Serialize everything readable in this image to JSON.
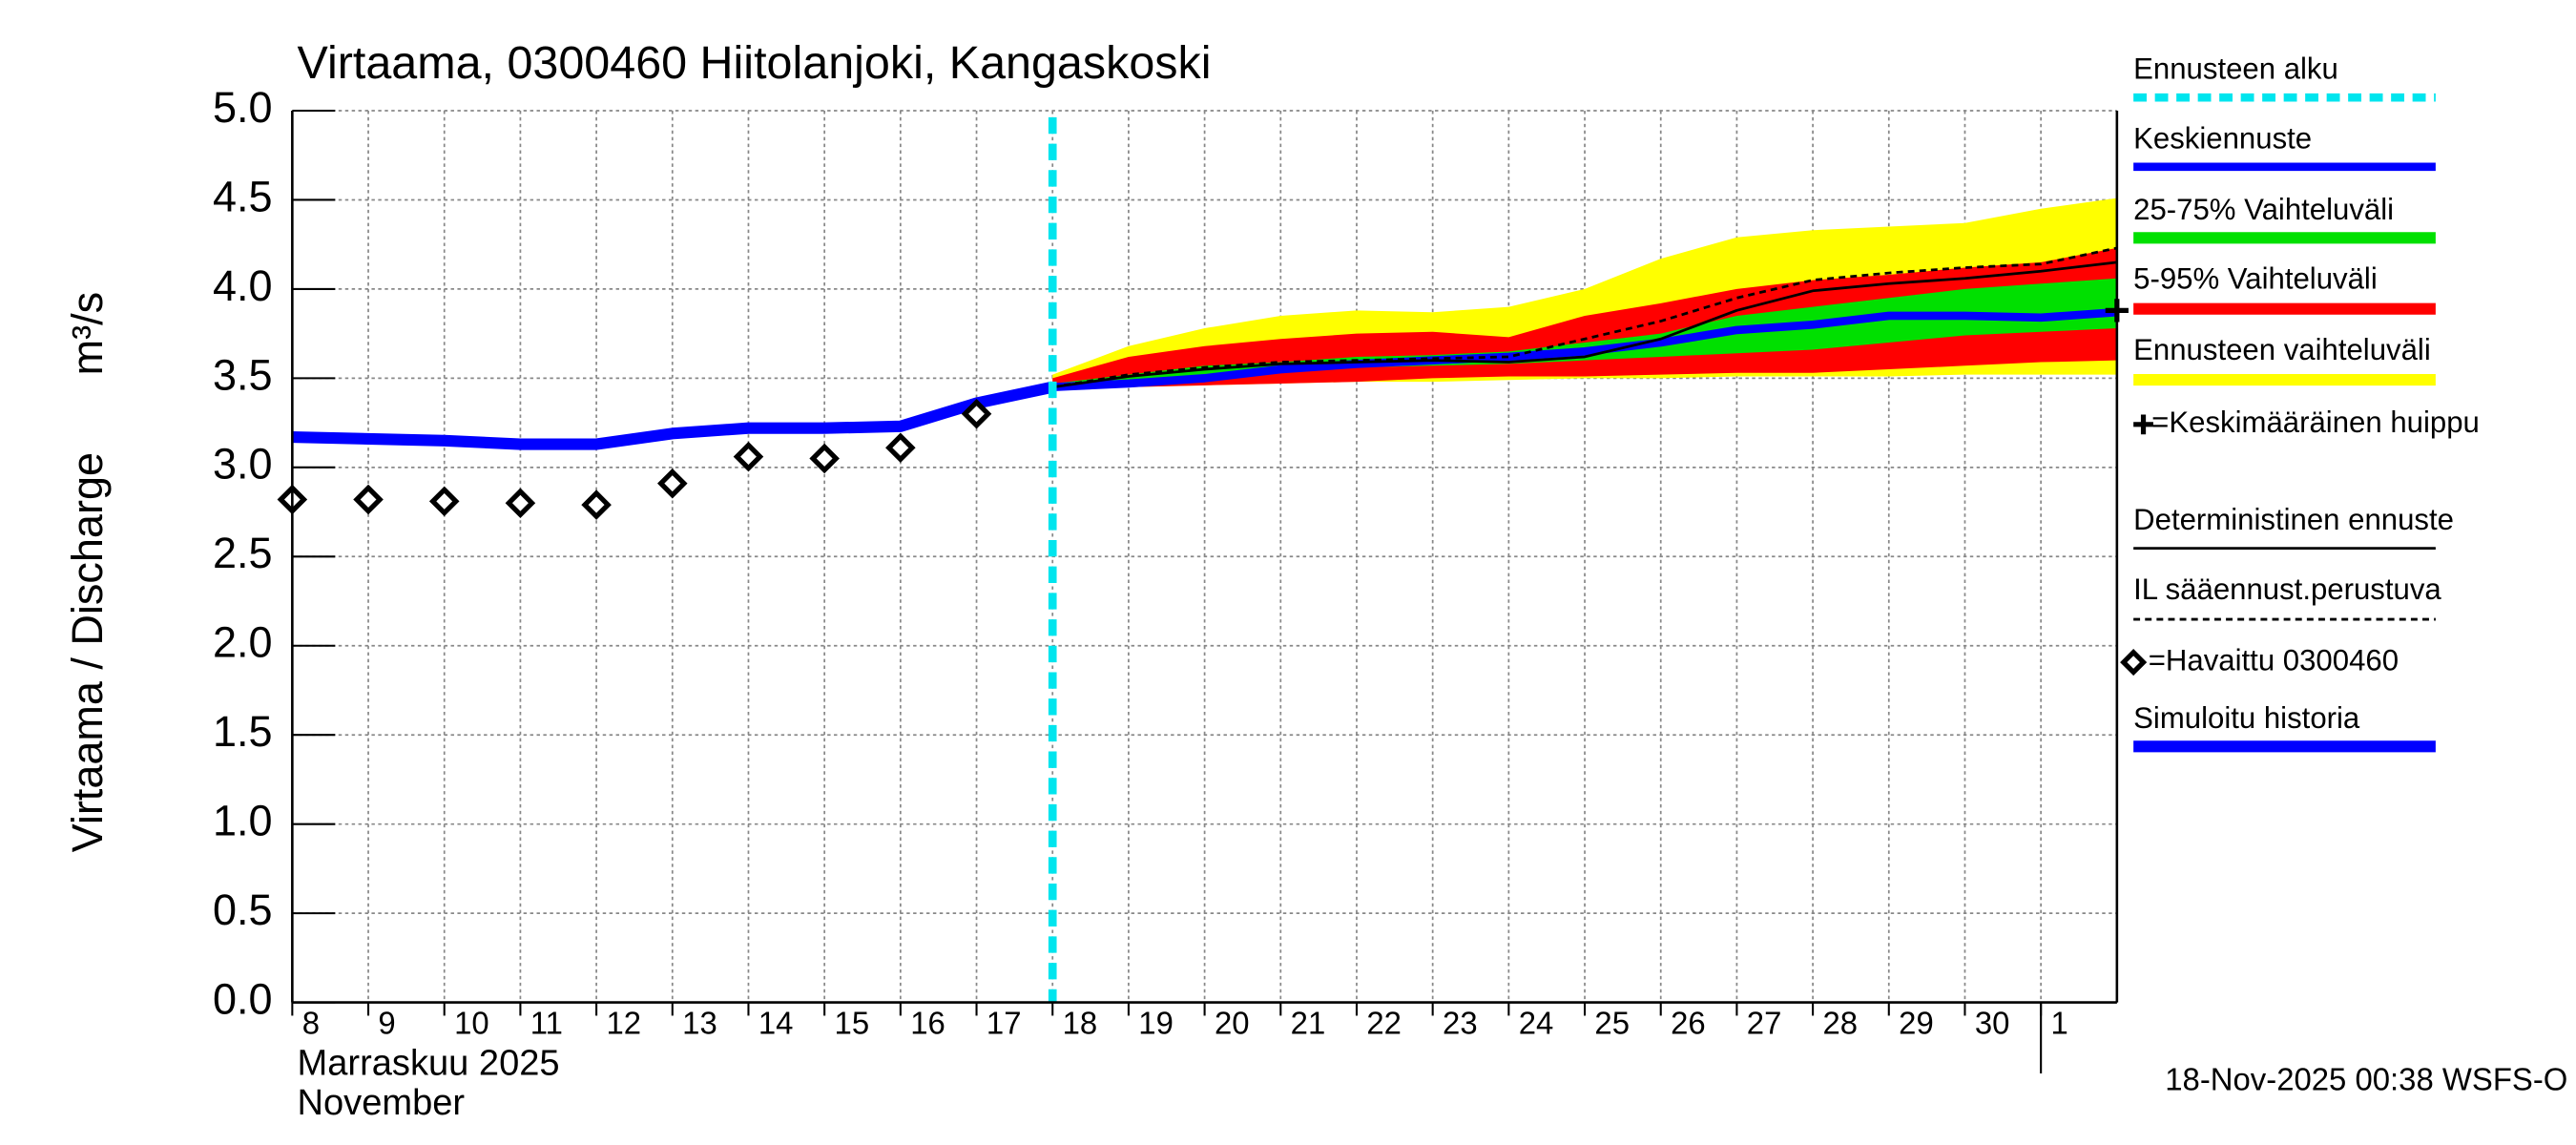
{
  "chart_data": {
    "type": "line",
    "title": "Virtaama, 0300460 Hiitolanjoki, Kangaskoski",
    "ylabel": "Virtaama / Discharge",
    "yunit": "m³/s",
    "month_label": "Marraskuu 2025",
    "month_label_en": "November",
    "footer": "18-Nov-2025 00:38 WSFS-O",
    "xlim": [
      0,
      24
    ],
    "xticks": [
      {
        "value": 0,
        "label": "8"
      },
      {
        "value": 1,
        "label": "9"
      },
      {
        "value": 2,
        "label": "10"
      },
      {
        "value": 3,
        "label": "11"
      },
      {
        "value": 4,
        "label": "12"
      },
      {
        "value": 5,
        "label": "13"
      },
      {
        "value": 6,
        "label": "14"
      },
      {
        "value": 7,
        "label": "15"
      },
      {
        "value": 8,
        "label": "16"
      },
      {
        "value": 9,
        "label": "17"
      },
      {
        "value": 10,
        "label": "18"
      },
      {
        "value": 11,
        "label": "19"
      },
      {
        "value": 12,
        "label": "20"
      },
      {
        "value": 13,
        "label": "21"
      },
      {
        "value": 14,
        "label": "22"
      },
      {
        "value": 15,
        "label": "23"
      },
      {
        "value": 16,
        "label": "24"
      },
      {
        "value": 17,
        "label": "25"
      },
      {
        "value": 18,
        "label": "26"
      },
      {
        "value": 19,
        "label": "27"
      },
      {
        "value": 20,
        "label": "28"
      },
      {
        "value": 21,
        "label": "29"
      },
      {
        "value": 22,
        "label": "30"
      },
      {
        "value": 23,
        "label": "1"
      }
    ],
    "month_start": 23,
    "ylim": [
      0,
      5
    ],
    "yticks": [
      {
        "value": 0,
        "label": "0.0"
      },
      0.5,
      {
        "value": 1,
        "label": "1.0"
      },
      1.5,
      {
        "value": 2,
        "label": "2.0"
      },
      2.5,
      {
        "value": 3,
        "label": "3.0"
      },
      3.5,
      {
        "value": 4,
        "label": "4.0"
      },
      4.5,
      {
        "value": 5,
        "label": "5.0"
      }
    ],
    "grid": true,
    "forecast_start": {
      "name": "Ennusteen alku",
      "color": "#00e5ee",
      "x": 10
    },
    "bands": [
      {
        "name": "Ennusteen vaihteluväli",
        "color": "#ffff00",
        "x": [
          10,
          11,
          12,
          13,
          14,
          15,
          16,
          17,
          18,
          19,
          20,
          21,
          22,
          23,
          24
        ],
        "lower": [
          3.45,
          3.45,
          3.46,
          3.47,
          3.48,
          3.48,
          3.49,
          3.5,
          3.5,
          3.51,
          3.51,
          3.51,
          3.52,
          3.52,
          3.52
        ],
        "upper": [
          3.52,
          3.68,
          3.78,
          3.85,
          3.88,
          3.87,
          3.9,
          4.0,
          4.17,
          4.29,
          4.33,
          4.35,
          4.37,
          4.45,
          4.51
        ]
      },
      {
        "name": "5-95% Vaihteluväli",
        "color": "#ff0000",
        "x": [
          10,
          11,
          12,
          13,
          14,
          15,
          16,
          17,
          18,
          19,
          20,
          21,
          22,
          23,
          24
        ],
        "lower": [
          3.45,
          3.45,
          3.46,
          3.47,
          3.48,
          3.5,
          3.51,
          3.51,
          3.52,
          3.53,
          3.53,
          3.55,
          3.57,
          3.59,
          3.6
        ],
        "upper": [
          3.5,
          3.62,
          3.68,
          3.72,
          3.75,
          3.76,
          3.73,
          3.85,
          3.92,
          4.0,
          4.05,
          4.08,
          4.12,
          4.15,
          4.23
        ]
      },
      {
        "name": "25-75% Vaihteluväli",
        "color": "#00e000",
        "x": [
          10,
          11,
          12,
          13,
          14,
          15,
          16,
          17,
          18,
          19,
          20,
          21,
          22,
          23,
          24
        ],
        "lower": [
          3.45,
          3.46,
          3.49,
          3.53,
          3.56,
          3.57,
          3.58,
          3.6,
          3.62,
          3.64,
          3.66,
          3.7,
          3.74,
          3.76,
          3.78
        ],
        "upper": [
          3.47,
          3.52,
          3.57,
          3.59,
          3.62,
          3.63,
          3.65,
          3.7,
          3.75,
          3.85,
          3.9,
          3.95,
          4.0,
          4.03,
          4.06
        ]
      }
    ],
    "series": [
      {
        "name": "Simuloitu historia",
        "color": "#0000ff",
        "style": "thick",
        "x": [
          0,
          1,
          2,
          3,
          4,
          5,
          6,
          7,
          8,
          9,
          10
        ],
        "values": [
          3.17,
          3.16,
          3.15,
          3.13,
          3.13,
          3.19,
          3.22,
          3.22,
          3.23,
          3.36,
          3.45
        ]
      },
      {
        "name": "Keskiennuste",
        "color": "#0000ff",
        "style": "normal",
        "x": [
          10,
          11,
          12,
          13,
          14,
          15,
          16,
          17,
          18,
          19,
          20,
          21,
          22,
          23,
          24
        ],
        "values": [
          3.45,
          3.47,
          3.5,
          3.55,
          3.58,
          3.6,
          3.62,
          3.65,
          3.7,
          3.77,
          3.8,
          3.85,
          3.85,
          3.84,
          3.87
        ]
      },
      {
        "name": "Deterministinen ennuste",
        "color": "#000000",
        "style": "thin",
        "x": [
          10,
          11,
          12,
          13,
          14,
          15,
          16,
          17,
          18,
          19,
          20,
          21,
          22,
          23,
          24
        ],
        "values": [
          3.45,
          3.51,
          3.55,
          3.58,
          3.59,
          3.6,
          3.59,
          3.62,
          3.72,
          3.88,
          3.99,
          4.03,
          4.06,
          4.1,
          4.15
        ]
      },
      {
        "name": "IL sääennust.perustuva",
        "color": "#000000",
        "style": "dashed",
        "x": [
          10,
          11,
          12,
          13,
          14,
          15,
          16,
          17,
          18,
          19,
          20,
          21,
          22,
          23,
          24
        ],
        "values": [
          3.45,
          3.52,
          3.56,
          3.59,
          3.6,
          3.61,
          3.62,
          3.72,
          3.82,
          3.95,
          4.05,
          4.09,
          4.12,
          4.14,
          4.23
        ]
      },
      {
        "name": "=Havaittu 0300460",
        "color": "#000000",
        "style": "diamonds",
        "x": [
          0,
          1,
          2,
          3,
          4,
          5,
          6,
          7,
          8,
          9
        ],
        "values": [
          2.82,
          2.82,
          2.81,
          2.8,
          2.79,
          2.91,
          3.06,
          3.05,
          3.11,
          3.3
        ]
      }
    ],
    "mean_peak": {
      "name": "=Keskimääräinen huippu",
      "color": "#000000",
      "x": 24,
      "value": 3.88
    }
  }
}
